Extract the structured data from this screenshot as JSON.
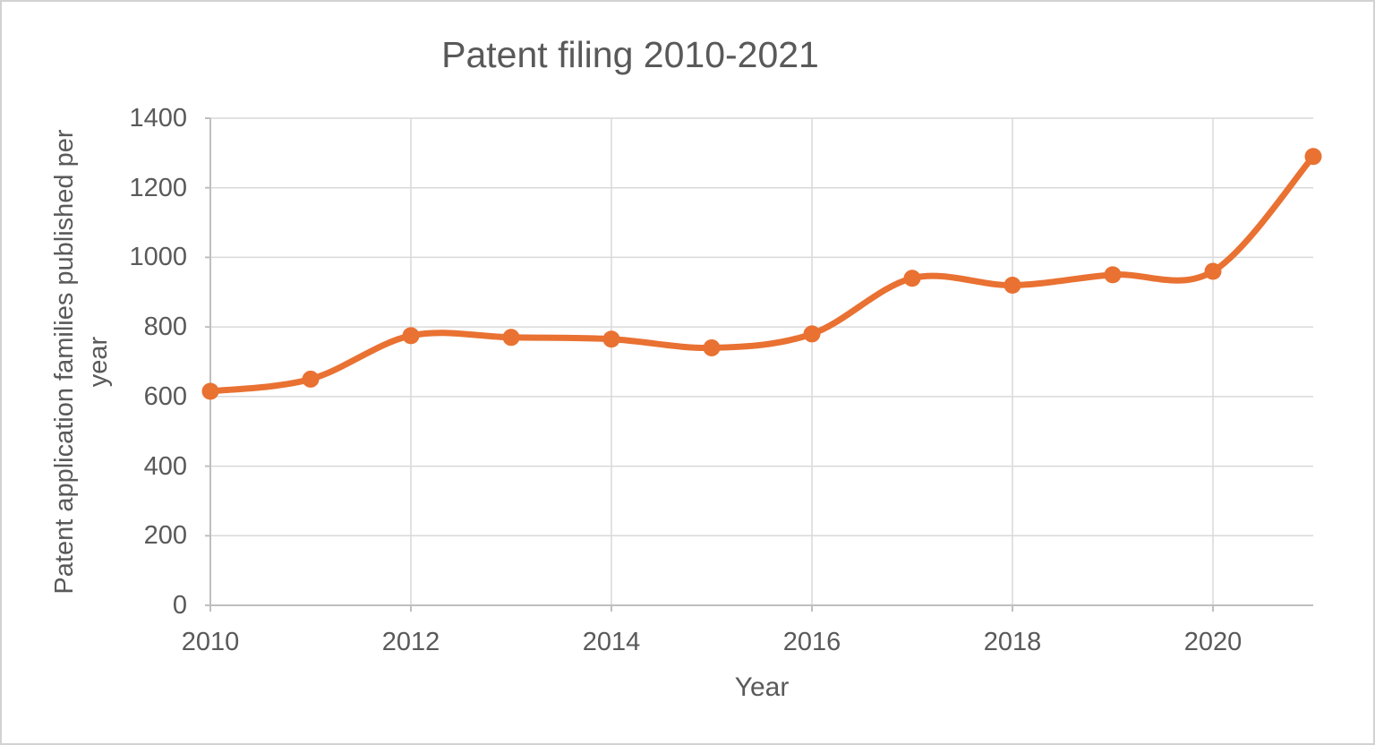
{
  "chart_data": {
    "type": "line",
    "title": "Patent filing 2010-2021",
    "xlabel": "Year",
    "ylabel": "Patent application families published per year",
    "ylabel_lines": [
      "Patent application families published per",
      "year"
    ],
    "x": [
      2010,
      2011,
      2012,
      2013,
      2014,
      2015,
      2016,
      2017,
      2018,
      2019,
      2020,
      2021
    ],
    "values": [
      615,
      650,
      775,
      770,
      765,
      740,
      780,
      940,
      920,
      950,
      960,
      1290
    ],
    "x_ticks": [
      2010,
      2012,
      2014,
      2016,
      2018,
      2020
    ],
    "y_ticks": [
      0,
      200,
      400,
      600,
      800,
      1000,
      1200,
      1400
    ],
    "xlim": [
      2010,
      2021
    ],
    "ylim": [
      0,
      1400
    ],
    "grid": true,
    "smooth": true,
    "legend": "none",
    "line_color": "#E97132",
    "marker": "circle",
    "marker_color": "#E97132",
    "text_color": "#595959",
    "gridline_color": "#D9D9D9",
    "axis_color": "#BFBFBF",
    "background_color": "#FFFFFF",
    "border_color": "#D2D2D2"
  }
}
